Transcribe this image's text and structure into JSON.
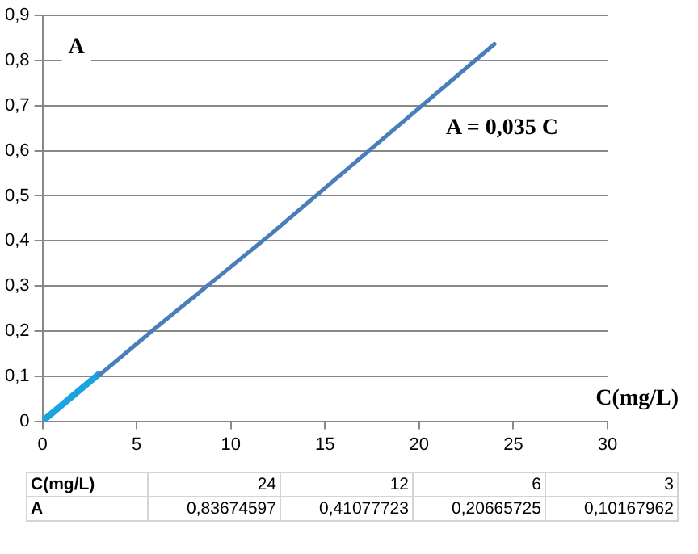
{
  "chart_data": {
    "type": "line",
    "xlabel": "C(mg/L)",
    "ylabel": "A",
    "annotations": [
      "A = 0,035 C",
      "24",
      "12",
      "6",
      "3",
      "0,83674597",
      "0,41077723",
      "0,20665725",
      "0,10167962"
    ],
    "xlim": [
      0,
      30
    ],
    "xticks": [
      0,
      5,
      10,
      15,
      20,
      25,
      30
    ],
    "ylim": [
      0,
      0.9
    ],
    "yticks": [
      0,
      {
        "value": 0.1,
        "label": "0,1"
      },
      {
        "value": 0.2,
        "label": "0,2"
      },
      {
        "value": 0.3,
        "label": "0,3"
      },
      {
        "value": 0.4,
        "label": "0,4"
      },
      {
        "value": 0.5,
        "label": "0,5"
      },
      {
        "value": 0.6,
        "label": "0,6"
      },
      {
        "value": 0.7,
        "label": "0,7"
      },
      {
        "value": 0.8,
        "label": "0,8"
      },
      {
        "value": 0.9,
        "label": "0,9"
      }
    ],
    "grid": "y",
    "legend": false,
    "marker": "none",
    "line_style": "solid",
    "series": [
      {
        "color": "#4a7ebb",
        "x": [
          24,
          12,
          6,
          3
        ],
        "values": [
          0.83674597,
          0.41077723,
          0.20665725,
          0.10167962
        ]
      },
      {
        "color": "#1aa3e0",
        "x": [
          0,
          3
        ],
        "values": [
          0,
          0.105
        ]
      }
    ]
  }
}
